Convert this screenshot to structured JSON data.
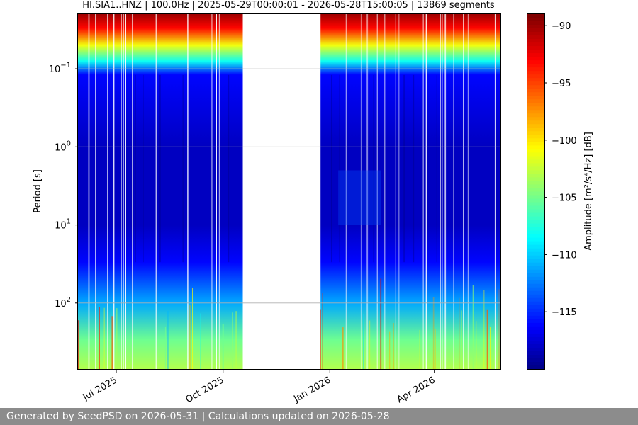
{
  "chart_data": {
    "type": "heatmap",
    "title": "HI.SIA1..HNZ | 100.0Hz | 2025-05-29T00:00:01 - 2026-05-28T15:00:05 | 13869 segments",
    "ylabel": "Period [s]",
    "colorbar_label": "Amplitude [m²/s⁴/Hz] [dB]",
    "x_range": [
      "2025-05-29",
      "2026-05-28"
    ],
    "x_ticks": [
      {
        "date": "2025-07-01",
        "label": "Jul 2025"
      },
      {
        "date": "2025-10-01",
        "label": "Oct 2025"
      },
      {
        "date": "2026-01-01",
        "label": "Jan 2026"
      },
      {
        "date": "2026-04-01",
        "label": "Apr 2026"
      }
    ],
    "y_scale": "log",
    "y_inverted": true,
    "y_range": [
      0.02,
      700
    ],
    "y_ticks": [
      {
        "value": 0.1,
        "base": "10",
        "exp": "−1"
      },
      {
        "value": 1,
        "base": "10",
        "exp": "0"
      },
      {
        "value": 10,
        "base": "10",
        "exp": "1"
      },
      {
        "value": 100,
        "base": "10",
        "exp": "2"
      }
    ],
    "data_gap": [
      "2025-10-18",
      "2025-12-24"
    ],
    "colorbar_range": [
      -120,
      -89
    ],
    "colorbar_ticks": [
      -90,
      -95,
      -100,
      -105,
      -110,
      -115
    ],
    "colormap": "jet",
    "grid": true,
    "amplitude_profile_by_period": [
      {
        "period": 0.02,
        "amplitude_db": -90
      },
      {
        "period": 0.03,
        "amplitude_db": -93
      },
      {
        "period": 0.05,
        "amplitude_db": -101
      },
      {
        "period": 0.08,
        "amplitude_db": -108
      },
      {
        "period": 0.12,
        "amplitude_db": -116
      },
      {
        "period": 1,
        "amplitude_db": -118
      },
      {
        "period": 10,
        "amplitude_db": -118
      },
      {
        "period": 30,
        "amplitude_db": -116
      },
      {
        "period": 100,
        "amplitude_db": -111
      },
      {
        "period": 300,
        "amplitude_db": -105
      },
      {
        "period": 700,
        "amplitude_db": -103
      }
    ]
  },
  "footer": {
    "text": "Generated by SeedPSD on 2026-05-31 | Calculations updated on 2026-05-28"
  }
}
